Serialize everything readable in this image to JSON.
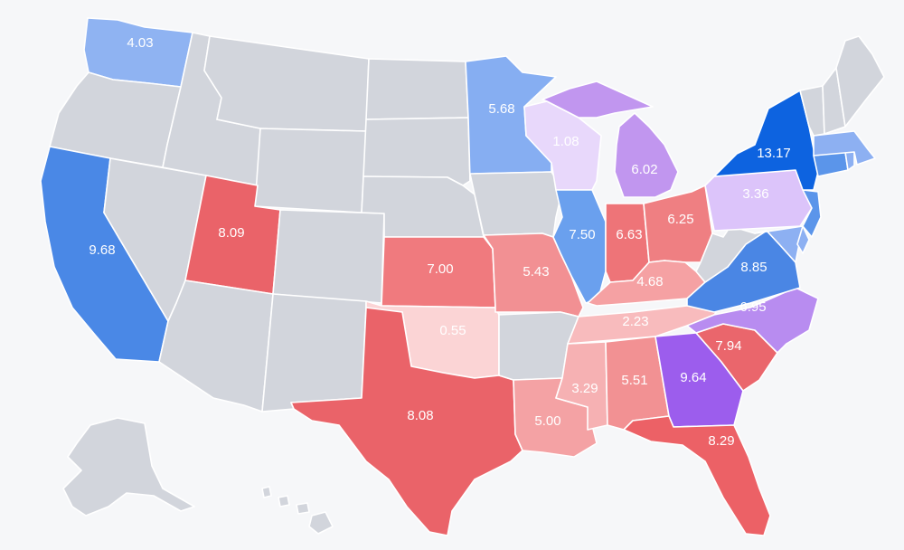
{
  "colors": {
    "background": "#f6f7f9",
    "no_data": "#d2d5dc",
    "border": "#ffffff",
    "label_text": "#ffffff"
  },
  "states": [
    {
      "id": "WA",
      "value": "4.03",
      "color": "#8fb3f2"
    },
    {
      "id": "CA",
      "value": "9.68",
      "color": "#4a88e6"
    },
    {
      "id": "UT",
      "value": "8.09",
      "color": "#ea6369"
    },
    {
      "id": "KS",
      "value": "7.00",
      "color": "#f07a7e"
    },
    {
      "id": "OK",
      "value": "0.55",
      "color": "#fbd4d5"
    },
    {
      "id": "TX",
      "value": "8.08",
      "color": "#ea6369"
    },
    {
      "id": "MN",
      "value": "5.68",
      "color": "#86aef2"
    },
    {
      "id": "WI",
      "value": "1.08",
      "color": "#e8d8fb"
    },
    {
      "id": "MI",
      "value": "6.02",
      "color": "#c196ef"
    },
    {
      "id": "IL",
      "value": "7.50",
      "color": "#6aa0ee"
    },
    {
      "id": "MO",
      "value": "5.43",
      "color": "#f29093"
    },
    {
      "id": "IN",
      "value": "6.63",
      "color": "#ee7478"
    },
    {
      "id": "OH",
      "value": "6.25",
      "color": "#ef7f82"
    },
    {
      "id": "KY",
      "value": "4.68",
      "color": "#f5a1a3"
    },
    {
      "id": "TN",
      "value": "2.23",
      "color": "#f8bbbd"
    },
    {
      "id": "LA",
      "value": "5.00",
      "color": "#f4a2a4"
    },
    {
      "id": "MS",
      "value": "3.29",
      "color": "#f6b1b3"
    },
    {
      "id": "AL",
      "value": "5.51",
      "color": "#f29193"
    },
    {
      "id": "GA",
      "value": "9.64",
      "color": "#9c5ded"
    },
    {
      "id": "SC",
      "value": "7.94",
      "color": "#ea666c"
    },
    {
      "id": "NC",
      "value": "6.95",
      "color": "#b88cf0"
    },
    {
      "id": "FL",
      "value": "8.29",
      "color": "#ec6166"
    },
    {
      "id": "VA",
      "value": "8.85",
      "color": "#4a86e4"
    },
    {
      "id": "PA",
      "value": "3.36",
      "color": "#dcc4fa"
    },
    {
      "id": "NY",
      "value": "13.17",
      "color": "#0d63e0"
    },
    {
      "id": "NJ",
      "value": "",
      "color": "#5b95ea"
    },
    {
      "id": "MD",
      "value": "",
      "color": "#8db0f2"
    },
    {
      "id": "DE",
      "value": "",
      "color": "#8db0f2"
    },
    {
      "id": "CT",
      "value": "",
      "color": "#5b95ea"
    },
    {
      "id": "MA",
      "value": "",
      "color": "#8db0f2"
    },
    {
      "id": "RI",
      "value": "",
      "color": "#8db0f2"
    },
    {
      "id": "OR",
      "value": "",
      "color": "#d2d5dc"
    },
    {
      "id": "NV",
      "value": "",
      "color": "#d2d5dc"
    },
    {
      "id": "ID",
      "value": "",
      "color": "#d2d5dc"
    },
    {
      "id": "MT",
      "value": "",
      "color": "#d2d5dc"
    },
    {
      "id": "WY",
      "value": "",
      "color": "#d2d5dc"
    },
    {
      "id": "CO",
      "value": "",
      "color": "#d2d5dc"
    },
    {
      "id": "AZ",
      "value": "",
      "color": "#d2d5dc"
    },
    {
      "id": "NM",
      "value": "",
      "color": "#d2d5dc"
    },
    {
      "id": "ND",
      "value": "",
      "color": "#d2d5dc"
    },
    {
      "id": "SD",
      "value": "",
      "color": "#d2d5dc"
    },
    {
      "id": "NE",
      "value": "",
      "color": "#d2d5dc"
    },
    {
      "id": "IA",
      "value": "",
      "color": "#d2d5dc"
    },
    {
      "id": "AR",
      "value": "",
      "color": "#d2d5dc"
    },
    {
      "id": "WV",
      "value": "",
      "color": "#d2d5dc"
    },
    {
      "id": "ME",
      "value": "",
      "color": "#d2d5dc"
    },
    {
      "id": "NH",
      "value": "",
      "color": "#d2d5dc"
    },
    {
      "id": "VT",
      "value": "",
      "color": "#d2d5dc"
    },
    {
      "id": "AK",
      "value": "",
      "color": "#d2d5dc"
    },
    {
      "id": "HI",
      "value": "",
      "color": "#d2d5dc"
    }
  ]
}
